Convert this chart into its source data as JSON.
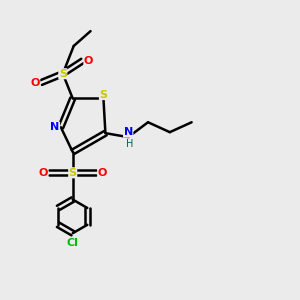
{
  "background_color": "#ebebeb",
  "figsize": [
    3.0,
    3.0
  ],
  "dpi": 100,
  "colors": {
    "S": "#c8c800",
    "N": "#0000ff",
    "O": "#ff0000",
    "Cl": "#00bb00",
    "C": "#000000",
    "H": "#006060",
    "bond": "#000000"
  }
}
